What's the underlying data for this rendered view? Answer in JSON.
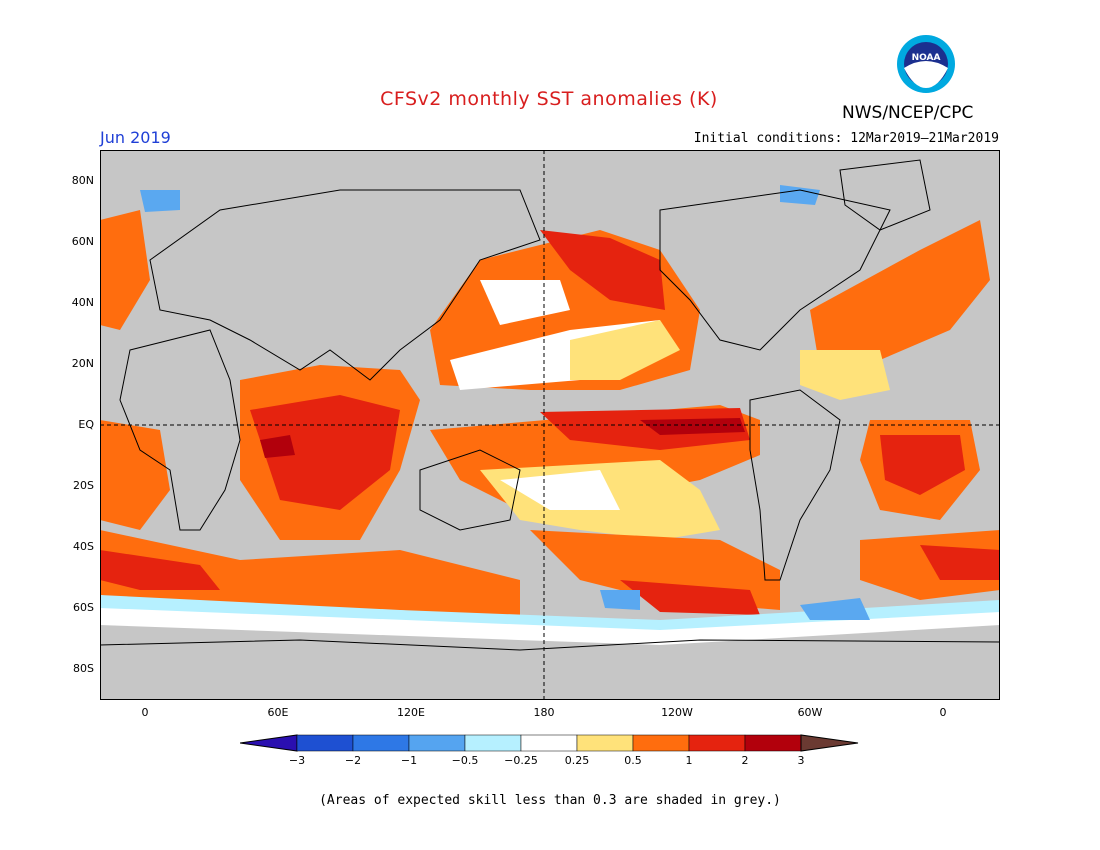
{
  "header": {
    "title": "CFSv2 monthly SST anomalies (K)",
    "agency": "NWS/NCEP/CPC",
    "month": "Jun 2019",
    "initial_conditions": "Initial conditions: 12Mar2019–21Mar2019",
    "logo_text": "NOAA"
  },
  "map": {
    "lat_labels": [
      "80N",
      "60N",
      "40N",
      "20N",
      "EQ",
      "20S",
      "40S",
      "60S",
      "80S"
    ],
    "lon_labels": [
      "0",
      "60E",
      "120E",
      "180",
      "120W",
      "60W",
      "0"
    ],
    "colors": {
      "land": "#c6c6c6",
      "low_skill_ocean": "#c6c6c6",
      "near_zero": "#ffffff",
      "warm_025_05": "#ffe27a",
      "warm_05_1": "#ff6d0e",
      "warm_1_2": "#e5230f",
      "warm_2_3": "#b2000c",
      "cool_m05_m025": "#b6f0ff",
      "cool_m1_m05": "#5aa8f0"
    }
  },
  "colorbar": {
    "labels": [
      "−3",
      "−2",
      "−1",
      "−0.5",
      "−0.25",
      "0.25",
      "0.5",
      "1",
      "2",
      "3"
    ],
    "colors": [
      "#2a0fb0",
      "#1e50d2",
      "#2e78e6",
      "#55a4f0",
      "#b6f0ff",
      "#ffffff",
      "#ffe27a",
      "#ff6d0e",
      "#e5230f",
      "#b2000c",
      "#6b3a32"
    ]
  },
  "footnote": "(Areas of expected skill less than 0.3 are shaded in grey.)"
}
